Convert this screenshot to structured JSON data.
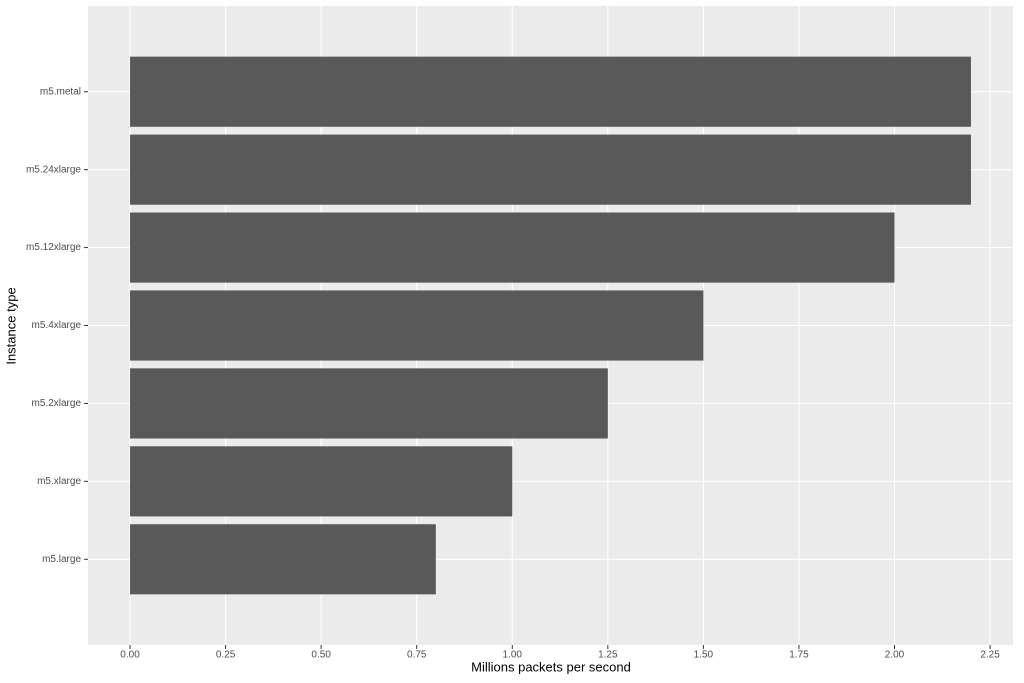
{
  "chart_data": {
    "type": "hbar",
    "categories": [
      "m5.metal",
      "m5.24xlarge",
      "m5.12xlarge",
      "m5.4xlarge",
      "m5.2xlarge",
      "m5.xlarge",
      "m5.large"
    ],
    "values": [
      2.2,
      2.2,
      2.0,
      1.5,
      1.25,
      1.0,
      0.8
    ],
    "color": "#595959",
    "x_label": "Millions packets per second",
    "y_label": "Instance type",
    "xlim": [
      -0.11,
      2.31
    ],
    "xticks": [
      {
        "value": 0,
        "label": "0.00"
      },
      {
        "value": 0.25,
        "label": "0.25"
      },
      {
        "value": 0.5,
        "label": "0.50"
      },
      {
        "value": 0.75,
        "label": "0.75"
      },
      {
        "value": 1,
        "label": "1.00"
      },
      {
        "value": 1.25,
        "label": "1.25"
      },
      {
        "value": 1.5,
        "label": "1.50"
      },
      {
        "value": 1.75,
        "label": "1.75"
      },
      {
        "value": 2,
        "label": "2.00"
      },
      {
        "value": 2.25,
        "label": "2.25"
      }
    ],
    "grid": true
  }
}
